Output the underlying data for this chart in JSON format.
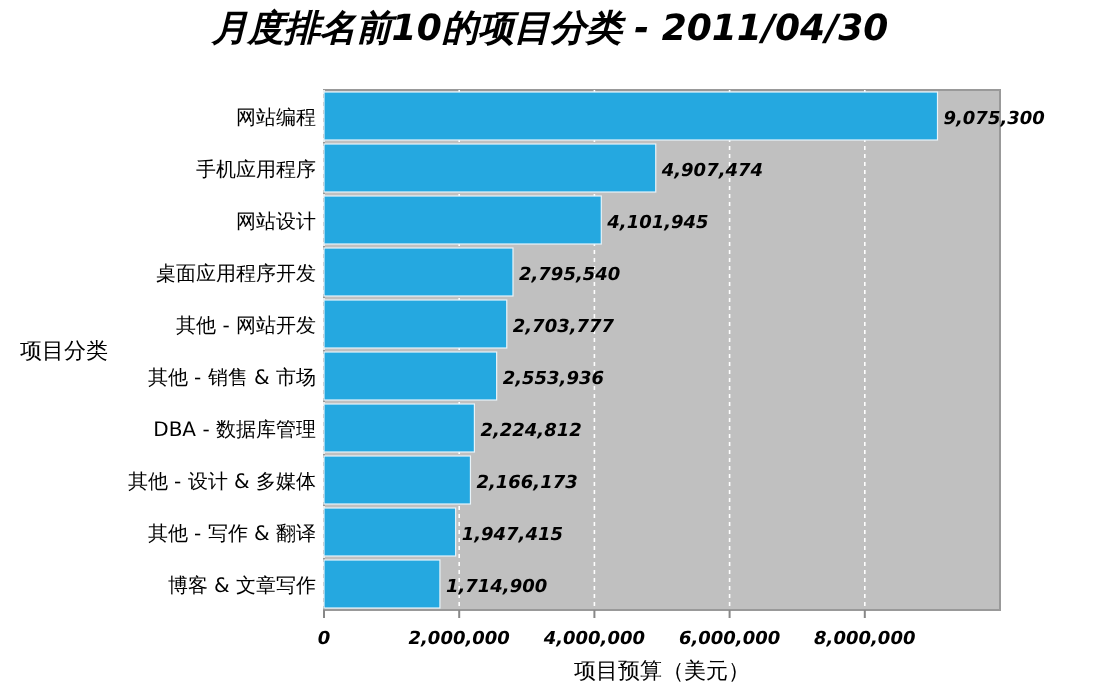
{
  "chart_data": {
    "type": "bar",
    "orientation": "horizontal",
    "title": "月度排名前10的项目分类 - 2011/04/30",
    "xlabel": "项目预算（美元）",
    "ylabel": "项目分类",
    "categories": [
      "网站编程",
      "手机应用程序",
      "网站设计",
      "桌面应用程序开发",
      "其他 - 网站开发",
      "其他 - 销售 & 市场",
      "DBA - 数据库管理",
      "其他 - 设计 & 多媒体",
      "其他 - 写作 & 翻译",
      "博客 & 文章写作"
    ],
    "values": [
      9075300,
      4907474,
      4101945,
      2795540,
      2703777,
      2553936,
      2224812,
      2166173,
      1947415,
      1714900
    ],
    "color": "#25a8e0",
    "xlim": [
      0,
      10000000
    ],
    "xticks": [
      {
        "value": 0,
        "label": "0"
      },
      {
        "value": 2000000,
        "label": "2,000,000"
      },
      {
        "value": 4000000,
        "label": "4,000,000"
      },
      {
        "value": 6000000,
        "label": "6,000,000"
      },
      {
        "value": 8000000,
        "label": "8,000,000"
      }
    ],
    "grid": "x",
    "value_labels": [
      "9,075,300",
      "4,907,474",
      "4,101,945",
      "2,795,540",
      "2,703,777",
      "2,553,936",
      "2,224,812",
      "2,166,173",
      "1,947,415",
      "1,714,900"
    ]
  }
}
